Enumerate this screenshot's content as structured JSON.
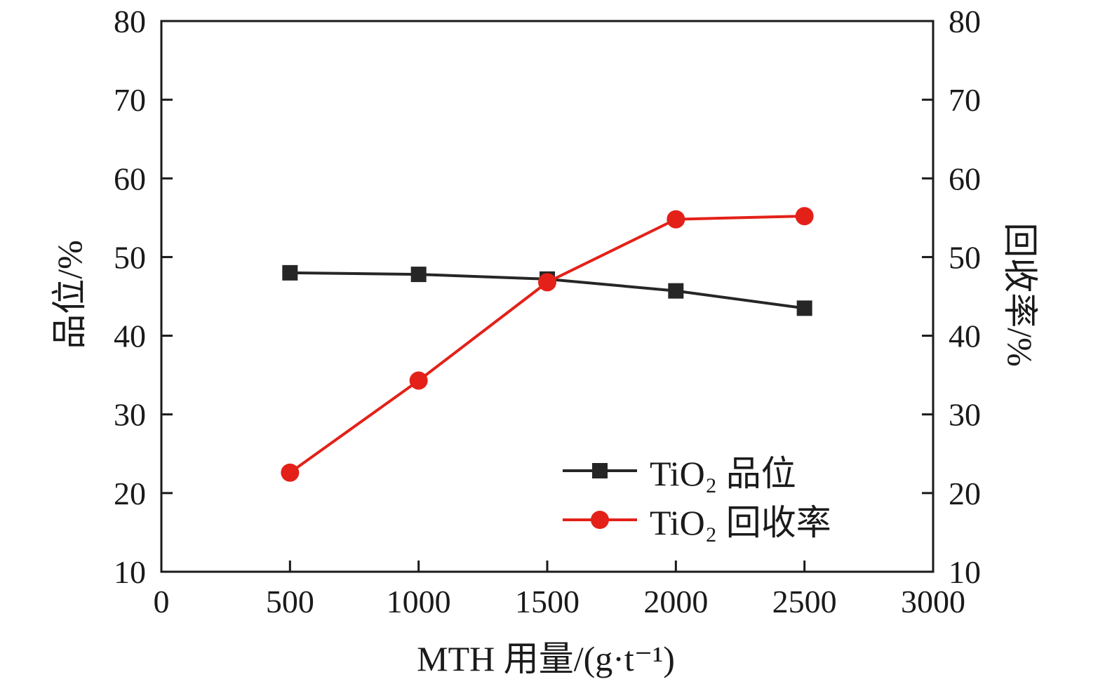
{
  "chart_data": {
    "type": "line",
    "title": "",
    "xlabel": "MTH 用量/(g·t⁻¹)",
    "ylabel_left": "品位/%",
    "ylabel_right": "回收率/%",
    "xlim": [
      0,
      3000
    ],
    "xticks": [
      0,
      500,
      1000,
      1500,
      2000,
      2500,
      3000
    ],
    "ylim_left": [
      10,
      80
    ],
    "yticks_left": [
      10,
      20,
      30,
      40,
      50,
      60,
      70,
      80
    ],
    "ylim_right": [
      10,
      80
    ],
    "yticks_right": [
      10,
      20,
      30,
      40,
      50,
      60,
      70,
      80
    ],
    "grid": false,
    "legend_position": "inside-lower-right",
    "x": [
      500,
      1000,
      1500,
      2000,
      2500
    ],
    "series": [
      {
        "name": "TiO₂ 品位",
        "axis": "left",
        "marker": "square",
        "color": "#262626",
        "values": [
          48.0,
          47.8,
          47.2,
          45.7,
          43.5
        ]
      },
      {
        "name": "TiO₂ 回收率",
        "axis": "right",
        "marker": "circle",
        "color": "#e32119",
        "values": [
          22.6,
          34.3,
          46.8,
          54.8,
          55.2
        ]
      }
    ]
  }
}
